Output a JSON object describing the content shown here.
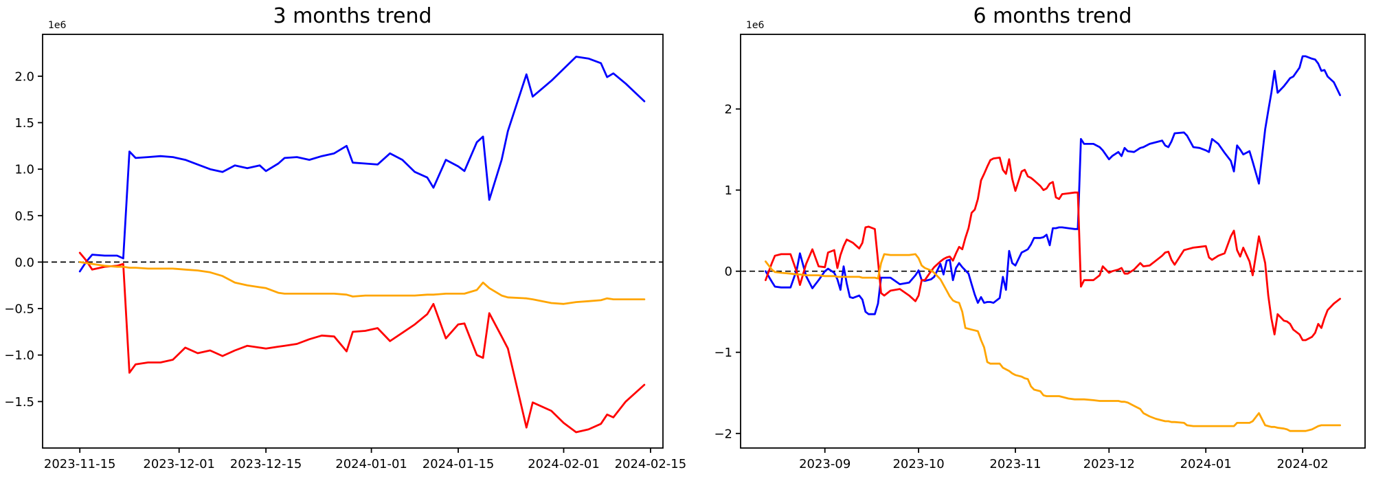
{
  "chart_data": [
    {
      "type": "line",
      "title": "3 months trend",
      "offset_label": "1e6",
      "y_unit_multiplier": 1000000,
      "legend": "none",
      "grid": false,
      "zero_line_dashed": true,
      "xlim": [
        "2023-11-09",
        "2024-02-17"
      ],
      "ylim": [
        -2.0,
        2.45
      ],
      "xticks": [
        {
          "date": "2023-11-15",
          "label": "2023-11-15"
        },
        {
          "date": "2023-12-01",
          "label": "2023-12-01"
        },
        {
          "date": "2023-12-15",
          "label": "2023-12-15"
        },
        {
          "date": "2024-01-01",
          "label": "2024-01-01"
        },
        {
          "date": "2024-01-15",
          "label": "2024-01-15"
        },
        {
          "date": "2024-02-01",
          "label": "2024-02-01"
        },
        {
          "date": "2024-02-15",
          "label": "2024-02-15"
        }
      ],
      "yticks": [
        {
          "value": 2.0,
          "label": "2.0"
        },
        {
          "value": 1.5,
          "label": "1.5"
        },
        {
          "value": 1.0,
          "label": "1.0"
        },
        {
          "value": 0.5,
          "label": "0.5"
        },
        {
          "value": 0.0,
          "label": "0.0"
        },
        {
          "value": -0.5,
          "label": "−0.5"
        },
        {
          "value": -1.0,
          "label": "−1.0"
        },
        {
          "value": -1.5,
          "label": "−1.5"
        }
      ],
      "x": [
        "2023-11-15",
        "2023-11-16",
        "2023-11-17",
        "2023-11-19",
        "2023-11-21",
        "2023-11-22",
        "2023-11-23",
        "2023-11-24",
        "2023-11-26",
        "2023-11-28",
        "2023-11-30",
        "2023-12-02",
        "2023-12-04",
        "2023-12-06",
        "2023-12-08",
        "2023-12-10",
        "2023-12-12",
        "2023-12-14",
        "2023-12-15",
        "2023-12-17",
        "2023-12-18",
        "2023-12-20",
        "2023-12-22",
        "2023-12-24",
        "2023-12-26",
        "2023-12-28",
        "2023-12-29",
        "2023-12-31",
        "2024-01-02",
        "2024-01-04",
        "2024-01-06",
        "2024-01-08",
        "2024-01-10",
        "2024-01-11",
        "2024-01-13",
        "2024-01-15",
        "2024-01-16",
        "2024-01-18",
        "2024-01-19",
        "2024-01-20",
        "2024-01-22",
        "2024-01-23",
        "2024-01-26",
        "2024-01-27",
        "2024-01-30",
        "2024-02-01",
        "2024-02-03",
        "2024-02-05",
        "2024-02-07",
        "2024-02-08",
        "2024-02-09",
        "2024-02-11",
        "2024-02-14"
      ],
      "series": [
        {
          "name": "blue",
          "color": "#0000ff",
          "y": [
            -0.1,
            0.0,
            0.08,
            0.07,
            0.07,
            0.04,
            1.19,
            1.12,
            1.13,
            1.14,
            1.13,
            1.1,
            1.05,
            1.0,
            0.97,
            1.04,
            1.01,
            1.04,
            0.98,
            1.06,
            1.12,
            1.13,
            1.1,
            1.14,
            1.17,
            1.25,
            1.07,
            1.06,
            1.05,
            1.17,
            1.1,
            0.97,
            0.91,
            0.8,
            1.1,
            1.03,
            0.98,
            1.29,
            1.35,
            0.67,
            1.1,
            1.41,
            2.02,
            1.78,
            1.95,
            2.08,
            2.21,
            2.19,
            2.14,
            1.99,
            2.03,
            1.92,
            1.73
          ]
        },
        {
          "name": "red",
          "color": "#ff0000",
          "y": [
            0.1,
            0.02,
            -0.08,
            -0.05,
            -0.04,
            -0.02,
            -1.19,
            -1.1,
            -1.08,
            -1.08,
            -1.05,
            -0.92,
            -0.98,
            -0.95,
            -1.01,
            -0.95,
            -0.9,
            -0.92,
            -0.93,
            -0.91,
            -0.9,
            -0.88,
            -0.83,
            -0.79,
            -0.8,
            -0.96,
            -0.75,
            -0.74,
            -0.71,
            -0.85,
            -0.76,
            -0.67,
            -0.56,
            -0.45,
            -0.82,
            -0.67,
            -0.66,
            -1.0,
            -1.03,
            -0.55,
            -0.8,
            -0.93,
            -1.78,
            -1.51,
            -1.6,
            -1.73,
            -1.83,
            -1.8,
            -1.74,
            -1.64,
            -1.67,
            -1.5,
            -1.32
          ]
        },
        {
          "name": "orange",
          "color": "#ffa500",
          "y": [
            0.0,
            -0.01,
            -0.02,
            -0.04,
            -0.05,
            -0.05,
            -0.06,
            -0.06,
            -0.07,
            -0.07,
            -0.07,
            -0.08,
            -0.09,
            -0.11,
            -0.15,
            -0.22,
            -0.25,
            -0.27,
            -0.28,
            -0.33,
            -0.34,
            -0.34,
            -0.34,
            -0.34,
            -0.34,
            -0.35,
            -0.37,
            -0.36,
            -0.36,
            -0.36,
            -0.36,
            -0.36,
            -0.35,
            -0.35,
            -0.34,
            -0.34,
            -0.34,
            -0.3,
            -0.22,
            -0.28,
            -0.36,
            -0.38,
            -0.39,
            -0.4,
            -0.44,
            -0.45,
            -0.43,
            -0.42,
            -0.41,
            -0.39,
            -0.4,
            -0.4,
            -0.4
          ]
        }
      ]
    },
    {
      "type": "line",
      "title": "6 months trend",
      "offset_label": "1e6",
      "y_unit_multiplier": 1000000,
      "legend": "none",
      "grid": false,
      "zero_line_dashed": true,
      "xlim": [
        "2023-08-05",
        "2024-02-21"
      ],
      "ylim": [
        -2.18,
        2.92
      ],
      "xticks": [
        {
          "date": "2023-09-01",
          "label": "2023-09"
        },
        {
          "date": "2023-10-01",
          "label": "2023-10"
        },
        {
          "date": "2023-11-01",
          "label": "2023-11"
        },
        {
          "date": "2023-12-01",
          "label": "2023-12"
        },
        {
          "date": "2024-01-01",
          "label": "2024-01"
        },
        {
          "date": "2024-02-01",
          "label": "2024-02"
        }
      ],
      "yticks": [
        {
          "value": 2,
          "label": "2"
        },
        {
          "value": 1,
          "label": "1"
        },
        {
          "value": 0,
          "label": "0"
        },
        {
          "value": -1,
          "label": "−1"
        },
        {
          "value": -2,
          "label": "−2"
        }
      ],
      "x": [
        "2023-08-13",
        "2023-08-15",
        "2023-08-16",
        "2023-08-18",
        "2023-08-21",
        "2023-08-23",
        "2023-08-24",
        "2023-08-26",
        "2023-08-28",
        "2023-08-30",
        "2023-09-01",
        "2023-09-02",
        "2023-09-04",
        "2023-09-05",
        "2023-09-06",
        "2023-09-07",
        "2023-09-08",
        "2023-09-09",
        "2023-09-10",
        "2023-09-12",
        "2023-09-13",
        "2023-09-14",
        "2023-09-15",
        "2023-09-17",
        "2023-09-18",
        "2023-09-19",
        "2023-09-20",
        "2023-09-22",
        "2023-09-25",
        "2023-09-28",
        "2023-09-30",
        "2023-10-01",
        "2023-10-02",
        "2023-10-03",
        "2023-10-05",
        "2023-10-06",
        "2023-10-08",
        "2023-10-09",
        "2023-10-10",
        "2023-10-11",
        "2023-10-12",
        "2023-10-13",
        "2023-10-14",
        "2023-10-15",
        "2023-10-16",
        "2023-10-17",
        "2023-10-18",
        "2023-10-19",
        "2023-10-20",
        "2023-10-21",
        "2023-10-22",
        "2023-10-23",
        "2023-10-24",
        "2023-10-25",
        "2023-10-27",
        "2023-10-28",
        "2023-10-29",
        "2023-10-30",
        "2023-10-31",
        "2023-11-01",
        "2023-11-03",
        "2023-11-04",
        "2023-11-05",
        "2023-11-06",
        "2023-11-07",
        "2023-11-09",
        "2023-11-10",
        "2023-11-11",
        "2023-11-12",
        "2023-11-13",
        "2023-11-14",
        "2023-11-15",
        "2023-11-16",
        "2023-11-18",
        "2023-11-20",
        "2023-11-21",
        "2023-11-22",
        "2023-11-23",
        "2023-11-26",
        "2023-11-28",
        "2023-11-29",
        "2023-12-01",
        "2023-12-02",
        "2023-12-04",
        "2023-12-05",
        "2023-12-06",
        "2023-12-07",
        "2023-12-09",
        "2023-12-11",
        "2023-12-12",
        "2023-12-14",
        "2023-12-16",
        "2023-12-18",
        "2023-12-19",
        "2023-12-20",
        "2023-12-21",
        "2023-12-22",
        "2023-12-25",
        "2023-12-26",
        "2023-12-28",
        "2023-12-30",
        "2024-01-01",
        "2024-01-02",
        "2024-01-03",
        "2024-01-05",
        "2024-01-07",
        "2024-01-09",
        "2024-01-10",
        "2024-01-11",
        "2024-01-12",
        "2024-01-13",
        "2024-01-15",
        "2024-01-16",
        "2024-01-18",
        "2024-01-20",
        "2024-01-21",
        "2024-01-22",
        "2024-01-23",
        "2024-01-24",
        "2024-01-26",
        "2024-01-27",
        "2024-01-28",
        "2024-01-29",
        "2024-01-31",
        "2024-02-01",
        "2024-02-02",
        "2024-02-04",
        "2024-02-05",
        "2024-02-06",
        "2024-02-07",
        "2024-02-08",
        "2024-02-09",
        "2024-02-11",
        "2024-02-13"
      ],
      "series": [
        {
          "name": "blue",
          "color": "#0000ff",
          "y": [
            0.0,
            -0.13,
            -0.19,
            -0.2,
            -0.2,
            0.02,
            0.22,
            -0.06,
            -0.21,
            -0.11,
            0.0,
            0.03,
            -0.02,
            -0.1,
            -0.23,
            0.06,
            -0.15,
            -0.32,
            -0.33,
            -0.3,
            -0.35,
            -0.5,
            -0.53,
            -0.53,
            -0.4,
            -0.08,
            -0.08,
            -0.08,
            -0.16,
            -0.14,
            -0.05,
            0.01,
            -0.11,
            -0.12,
            -0.1,
            -0.07,
            0.09,
            -0.04,
            0.13,
            0.14,
            -0.11,
            0.04,
            0.1,
            0.05,
            0.01,
            -0.03,
            -0.16,
            -0.29,
            -0.39,
            -0.32,
            -0.39,
            -0.38,
            -0.38,
            -0.39,
            -0.33,
            -0.07,
            -0.23,
            0.25,
            0.1,
            0.07,
            0.23,
            0.25,
            0.27,
            0.33,
            0.41,
            0.41,
            0.42,
            0.45,
            0.32,
            0.53,
            0.53,
            0.54,
            0.54,
            0.53,
            0.52,
            0.52,
            1.63,
            1.57,
            1.57,
            1.53,
            1.49,
            1.38,
            1.42,
            1.47,
            1.42,
            1.52,
            1.48,
            1.47,
            1.52,
            1.53,
            1.57,
            1.59,
            1.61,
            1.55,
            1.53,
            1.6,
            1.7,
            1.71,
            1.67,
            1.53,
            1.52,
            1.49,
            1.47,
            1.63,
            1.57,
            1.46,
            1.36,
            1.23,
            1.55,
            1.5,
            1.44,
            1.48,
            1.35,
            1.08,
            1.75,
            1.98,
            2.2,
            2.47,
            2.2,
            2.28,
            2.33,
            2.38,
            2.4,
            2.51,
            2.65,
            2.65,
            2.62,
            2.61,
            2.56,
            2.47,
            2.48,
            2.4,
            2.33,
            2.17
          ]
        },
        {
          "name": "red",
          "color": "#ff0000",
          "y": [
            -0.11,
            0.1,
            0.19,
            0.21,
            0.21,
            -0.01,
            -0.17,
            0.09,
            0.27,
            0.06,
            0.05,
            0.23,
            0.26,
            0.04,
            0.2,
            0.31,
            0.39,
            0.37,
            0.35,
            0.28,
            0.35,
            0.54,
            0.55,
            0.52,
            0.13,
            -0.27,
            -0.3,
            -0.24,
            -0.22,
            -0.3,
            -0.37,
            -0.3,
            -0.11,
            -0.11,
            0.0,
            0.05,
            0.12,
            0.15,
            0.17,
            0.18,
            0.13,
            0.22,
            0.3,
            0.27,
            0.41,
            0.53,
            0.72,
            0.76,
            0.89,
            1.12,
            1.2,
            1.29,
            1.37,
            1.39,
            1.4,
            1.25,
            1.2,
            1.38,
            1.14,
            0.99,
            1.23,
            1.25,
            1.17,
            1.15,
            1.12,
            1.05,
            1.0,
            1.02,
            1.08,
            1.1,
            0.91,
            0.89,
            0.95,
            0.96,
            0.97,
            0.97,
            -0.19,
            -0.11,
            -0.11,
            -0.05,
            0.06,
            -0.02,
            0.0,
            0.02,
            0.04,
            -0.03,
            -0.03,
            0.02,
            0.1,
            0.06,
            0.07,
            0.13,
            0.19,
            0.23,
            0.24,
            0.14,
            0.08,
            0.26,
            0.27,
            0.29,
            0.3,
            0.31,
            0.17,
            0.14,
            0.19,
            0.22,
            0.43,
            0.5,
            0.26,
            0.18,
            0.29,
            0.12,
            -0.05,
            0.43,
            0.1,
            -0.3,
            -0.58,
            -0.78,
            -0.53,
            -0.61,
            -0.62,
            -0.65,
            -0.72,
            -0.78,
            -0.85,
            -0.85,
            -0.81,
            -0.76,
            -0.65,
            -0.7,
            -0.58,
            -0.48,
            -0.4,
            -0.34
          ]
        },
        {
          "name": "orange",
          "color": "#ffa500",
          "y": [
            0.12,
            0.02,
            -0.01,
            -0.02,
            -0.03,
            -0.04,
            -0.04,
            -0.05,
            -0.05,
            -0.05,
            -0.06,
            -0.06,
            -0.06,
            -0.07,
            -0.07,
            -0.07,
            -0.07,
            -0.07,
            -0.07,
            -0.07,
            -0.08,
            -0.08,
            -0.08,
            -0.08,
            -0.09,
            0.1,
            0.21,
            0.2,
            0.2,
            0.2,
            0.21,
            0.16,
            0.07,
            0.04,
            0.01,
            -0.02,
            -0.1,
            -0.17,
            -0.24,
            -0.31,
            -0.36,
            -0.38,
            -0.39,
            -0.5,
            -0.7,
            -0.71,
            -0.72,
            -0.73,
            -0.74,
            -0.85,
            -0.94,
            -1.12,
            -1.14,
            -1.14,
            -1.14,
            -1.19,
            -1.21,
            -1.23,
            -1.26,
            -1.28,
            -1.3,
            -1.32,
            -1.33,
            -1.42,
            -1.46,
            -1.48,
            -1.53,
            -1.54,
            -1.54,
            -1.54,
            -1.54,
            -1.54,
            -1.55,
            -1.57,
            -1.58,
            -1.58,
            -1.58,
            -1.58,
            -1.59,
            -1.6,
            -1.6,
            -1.6,
            -1.6,
            -1.6,
            -1.61,
            -1.61,
            -1.62,
            -1.66,
            -1.7,
            -1.75,
            -1.79,
            -1.82,
            -1.84,
            -1.85,
            -1.85,
            -1.86,
            -1.86,
            -1.87,
            -1.9,
            -1.91,
            -1.91,
            -1.91,
            -1.91,
            -1.91,
            -1.91,
            -1.91,
            -1.91,
            -1.91,
            -1.87,
            -1.87,
            -1.87,
            -1.87,
            -1.85,
            -1.75,
            -1.9,
            -1.91,
            -1.92,
            -1.92,
            -1.93,
            -1.94,
            -1.95,
            -1.97,
            -1.97,
            -1.97,
            -1.97,
            -1.97,
            -1.95,
            -1.93,
            -1.91,
            -1.9,
            -1.9,
            -1.9,
            -1.9,
            -1.9
          ]
        }
      ]
    }
  ]
}
